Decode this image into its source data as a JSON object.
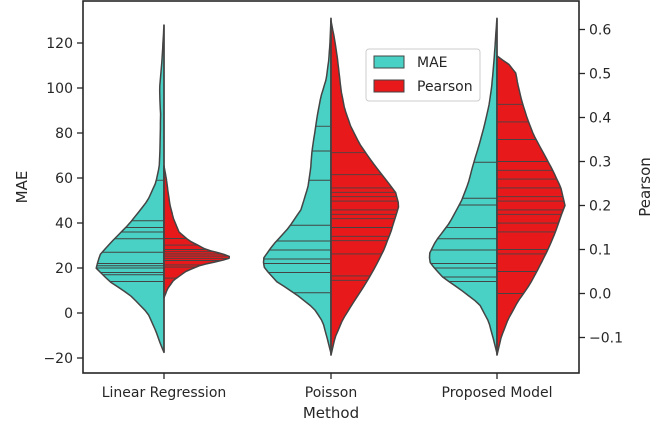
{
  "chart_data": {
    "type": "violin",
    "split": true,
    "xlabel": "Method",
    "ylabel_left": "MAE",
    "ylabel_right": "Pearson",
    "categories": [
      "Linear Regression",
      "Poisson",
      "Proposed Model"
    ],
    "ylim_left": [
      -26,
      138
    ],
    "ylim_right": [
      -0.18,
      0.65
    ],
    "yticks_left": [
      "−20",
      "0",
      "20",
      "40",
      "60",
      "80",
      "100",
      "120"
    ],
    "yticks_right": [
      "−0.1",
      "0.0",
      "0.1",
      "0.2",
      "0.3",
      "0.4",
      "0.5",
      "0.6"
    ],
    "legend": {
      "position": "top-right",
      "entries": [
        "MAE",
        "Pearson"
      ]
    },
    "colors": {
      "MAE": "#48d1c4",
      "Pearson": "#e8191a",
      "outline": "#444444"
    },
    "series": [
      {
        "name": "MAE",
        "axis": "left",
        "violins": [
          {
            "category": "Linear Regression",
            "range": [
              -17.5,
              128
            ],
            "profile": [
              [
                -17.5,
                0
              ],
              [
                -14,
                0.05
              ],
              [
                -8,
                0.12
              ],
              [
                0,
                0.24
              ],
              [
                8,
                0.5
              ],
              [
                14,
                0.8
              ],
              [
                20,
                1.0
              ],
              [
                26,
                0.94
              ],
              [
                32,
                0.76
              ],
              [
                40,
                0.5
              ],
              [
                50,
                0.24
              ],
              [
                58,
                0.12
              ],
              [
                65,
                0.07
              ],
              [
                72,
                0.06
              ],
              [
                80,
                0.055
              ],
              [
                88,
                0.05
              ],
              [
                95,
                0.06
              ],
              [
                100,
                0.065
              ],
              [
                105,
                0.05
              ],
              [
                112,
                0.03
              ],
              [
                120,
                0.015
              ],
              [
                128,
                0
              ]
            ],
            "lines": [
              14,
              17,
              18,
              20,
              21,
              22,
              27,
              33,
              36,
              38,
              41,
              59
            ]
          },
          {
            "category": "Poisson",
            "range": [
              -18,
              131
            ],
            "profile": [
              [
                -18,
                0
              ],
              [
                -12,
                0.05
              ],
              [
                -4,
                0.12
              ],
              [
                2,
                0.25
              ],
              [
                8,
                0.5
              ],
              [
                14,
                0.8
              ],
              [
                20,
                0.98
              ],
              [
                24,
                1.0
              ],
              [
                30,
                0.86
              ],
              [
                38,
                0.62
              ],
              [
                46,
                0.44
              ],
              [
                56,
                0.34
              ],
              [
                64,
                0.3
              ],
              [
                72,
                0.28
              ],
              [
                80,
                0.24
              ],
              [
                88,
                0.2
              ],
              [
                96,
                0.15
              ],
              [
                104,
                0.07
              ],
              [
                112,
                0.035
              ],
              [
                120,
                0.015
              ],
              [
                131,
                0
              ]
            ],
            "lines": [
              9,
              18,
              22,
              24,
              28,
              32,
              39,
              59,
              72,
              83
            ]
          },
          {
            "category": "Proposed Model",
            "range": [
              -18,
              131
            ],
            "profile": [
              [
                -18,
                0
              ],
              [
                -12,
                0.05
              ],
              [
                -4,
                0.12
              ],
              [
                4,
                0.26
              ],
              [
                10,
                0.52
              ],
              [
                16,
                0.8
              ],
              [
                22,
                0.98
              ],
              [
                26,
                1.0
              ],
              [
                32,
                0.9
              ],
              [
                40,
                0.7
              ],
              [
                50,
                0.52
              ],
              [
                58,
                0.42
              ],
              [
                66,
                0.35
              ],
              [
                75,
                0.26
              ],
              [
                84,
                0.18
              ],
              [
                92,
                0.12
              ],
              [
                100,
                0.08
              ],
              [
                110,
                0.05
              ],
              [
                118,
                0.03
              ],
              [
                125,
                0.015
              ],
              [
                131,
                0
              ]
            ],
            "lines": [
              14,
              16,
              20,
              22,
              28,
              33,
              38,
              48,
              51,
              67
            ]
          }
        ]
      },
      {
        "name": "Pearson",
        "axis": "right",
        "violins": [
          {
            "category": "Linear Regression",
            "range": [
              -0.01,
              0.29
            ],
            "profile": [
              [
                -0.01,
                0
              ],
              [
                0.01,
                0.05
              ],
              [
                0.03,
                0.14
              ],
              [
                0.05,
                0.32
              ],
              [
                0.065,
                0.55
              ],
              [
                0.075,
                0.85
              ],
              [
                0.082,
                1.0
              ],
              [
                0.09,
                0.86
              ],
              [
                0.1,
                0.62
              ],
              [
                0.12,
                0.37
              ],
              [
                0.14,
                0.22
              ],
              [
                0.17,
                0.14
              ],
              [
                0.2,
                0.09
              ],
              [
                0.23,
                0.06
              ],
              [
                0.26,
                0.035
              ],
              [
                0.29,
                0
              ]
            ],
            "lines": [
              0.035,
              0.06,
              0.065,
              0.075,
              0.08,
              0.085,
              0.09,
              0.095,
              0.1,
              0.11,
              0.125
            ]
          },
          {
            "category": "Poisson",
            "range": [
              -0.14,
              0.62
            ],
            "profile": [
              [
                -0.14,
                0
              ],
              [
                -0.1,
                0.06
              ],
              [
                -0.06,
                0.17
              ],
              [
                -0.02,
                0.33
              ],
              [
                0.02,
                0.5
              ],
              [
                0.06,
                0.65
              ],
              [
                0.1,
                0.78
              ],
              [
                0.14,
                0.88
              ],
              [
                0.18,
                0.96
              ],
              [
                0.2,
                1.0
              ],
              [
                0.23,
                0.95
              ],
              [
                0.26,
                0.8
              ],
              [
                0.3,
                0.6
              ],
              [
                0.34,
                0.42
              ],
              [
                0.38,
                0.29
              ],
              [
                0.42,
                0.2
              ],
              [
                0.46,
                0.15
              ],
              [
                0.5,
                0.12
              ],
              [
                0.54,
                0.09
              ],
              [
                0.58,
                0.05
              ],
              [
                0.62,
                0
              ]
            ],
            "lines": [
              0.03,
              0.04,
              0.09,
              0.12,
              0.13,
              0.15,
              0.17,
              0.18,
              0.19,
              0.21,
              0.22,
              0.23,
              0.24,
              0.27,
              0.32
            ]
          },
          {
            "category": "Proposed Model",
            "range": [
              -0.14,
              0.54
            ],
            "profile": [
              [
                -0.14,
                0
              ],
              [
                -0.1,
                0.06
              ],
              [
                -0.06,
                0.16
              ],
              [
                -0.02,
                0.3
              ],
              [
                0.02,
                0.48
              ],
              [
                0.06,
                0.62
              ],
              [
                0.1,
                0.75
              ],
              [
                0.14,
                0.86
              ],
              [
                0.18,
                0.95
              ],
              [
                0.2,
                1.0
              ],
              [
                0.24,
                0.94
              ],
              [
                0.28,
                0.82
              ],
              [
                0.32,
                0.68
              ],
              [
                0.36,
                0.54
              ],
              [
                0.4,
                0.44
              ],
              [
                0.44,
                0.36
              ],
              [
                0.48,
                0.3
              ],
              [
                0.5,
                0.28
              ],
              [
                0.52,
                0.18
              ],
              [
                0.54,
                0
              ]
            ],
            "lines": [
              0.0,
              0.05,
              0.09,
              0.1,
              0.14,
              0.16,
              0.18,
              0.19,
              0.21,
              0.22,
              0.24,
              0.26,
              0.28,
              0.3,
              0.35,
              0.39,
              0.43
            ]
          }
        ]
      }
    ]
  }
}
